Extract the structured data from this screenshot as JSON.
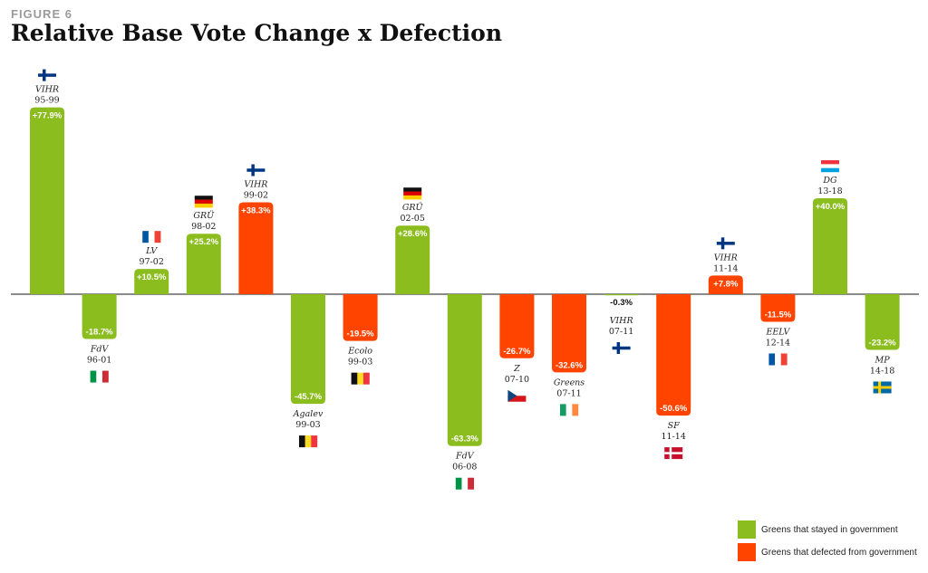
{
  "figure_label": "FIGURE 6",
  "title": "Relative Base Vote Change x Defection",
  "colors": {
    "stayed": "#8cbd1f",
    "defected": "#ff4400",
    "axis": "#444444"
  },
  "legend": [
    {
      "label": "Greens that stayed in government",
      "status": "stayed"
    },
    {
      "label": "Greens that defected from government",
      "status": "defected"
    }
  ],
  "chart_data": {
    "type": "bar",
    "ylabel": "",
    "xlabel": "",
    "series": [
      {
        "name": "Relative base vote change",
        "values": [
          77.9,
          -18.7,
          10.5,
          25.2,
          38.3,
          -45.7,
          -19.5,
          28.6,
          -63.3,
          -26.7,
          -32.6,
          -0.3,
          -50.6,
          7.8,
          -11.5,
          40.0,
          -23.2
        ]
      }
    ],
    "bars": [
      {
        "party": "VIHR",
        "period": "95-99",
        "country": "FI",
        "value": 77.9,
        "label": "+77.9%",
        "status": "stayed"
      },
      {
        "party": "FdV",
        "period": "96-01",
        "country": "IT",
        "value": -18.7,
        "label": "-18.7%",
        "status": "stayed"
      },
      {
        "party": "LV",
        "period": "97-02",
        "country": "FR",
        "value": 10.5,
        "label": "+10.5%",
        "status": "stayed"
      },
      {
        "party": "GRÜ",
        "period": "98-02",
        "country": "DE",
        "value": 25.2,
        "label": "+25.2%",
        "status": "stayed"
      },
      {
        "party": "VIHR",
        "period": "99-02",
        "country": "FI",
        "value": 38.3,
        "label": "+38.3%",
        "status": "defected"
      },
      {
        "party": "Agalev",
        "period": "99-03",
        "country": "BE",
        "value": -45.7,
        "label": "-45.7%",
        "status": "stayed"
      },
      {
        "party": "Ecolo",
        "period": "99-03",
        "country": "BE",
        "value": -19.5,
        "label": "-19.5%",
        "status": "defected"
      },
      {
        "party": "GRÜ",
        "period": "02-05",
        "country": "DE",
        "value": 28.6,
        "label": "+28.6%",
        "status": "stayed"
      },
      {
        "party": "FdV",
        "period": "06-08",
        "country": "IT",
        "value": -63.3,
        "label": "-63.3%",
        "status": "stayed"
      },
      {
        "party": "Z",
        "period": "07-10",
        "country": "CZ",
        "value": -26.7,
        "label": "-26.7%",
        "status": "defected"
      },
      {
        "party": "Greens",
        "period": "07-11",
        "country": "IE",
        "value": -32.6,
        "label": "-32.6%",
        "status": "defected"
      },
      {
        "party": "VIHR",
        "period": "07-11",
        "country": "FI",
        "value": -0.3,
        "label": "-0.3%",
        "status": "stayed"
      },
      {
        "party": "SF",
        "period": "11-14",
        "country": "DK",
        "value": -50.6,
        "label": "-50.6%",
        "status": "defected"
      },
      {
        "party": "VIHR",
        "period": "11-14",
        "country": "FI",
        "value": 7.8,
        "label": "+7.8%",
        "status": "defected"
      },
      {
        "party": "EELV",
        "period": "12-14",
        "country": "FR",
        "value": -11.5,
        "label": "-11.5%",
        "status": "defected"
      },
      {
        "party": "DG",
        "period": "13-18",
        "country": "LU",
        "value": 40.0,
        "label": "+40.0%",
        "status": "stayed"
      },
      {
        "party": "MP",
        "period": "14-18",
        "country": "SE",
        "value": -23.2,
        "label": "-23.2%",
        "status": "stayed"
      }
    ]
  }
}
